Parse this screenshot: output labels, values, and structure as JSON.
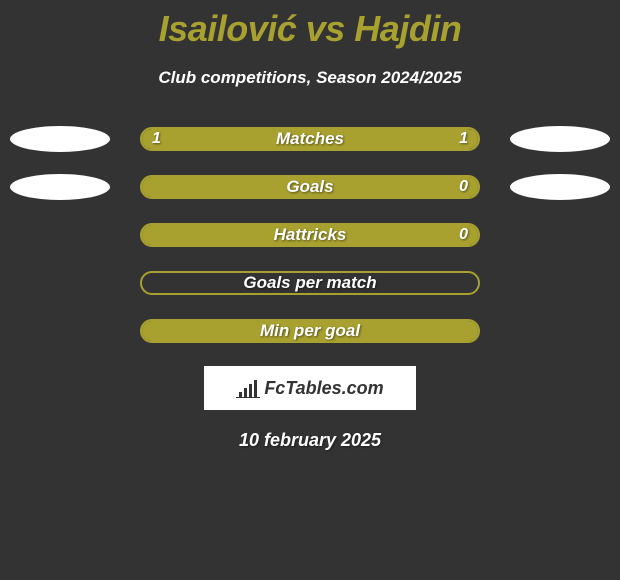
{
  "title": "Isailović vs Hajdin",
  "subtitle": "Club competitions, Season 2024/2025",
  "colors": {
    "background": "#333333",
    "accent": "#a8a130",
    "text": "#ffffff",
    "ellipse": "#ffffff",
    "outline": "#a8a130"
  },
  "stats": [
    {
      "label": "Matches",
      "left_value": "1",
      "right_value": "1",
      "left_fill_pct": 50,
      "right_fill_pct": 50,
      "show_left_ellipse": true,
      "show_right_ellipse": true
    },
    {
      "label": "Goals",
      "left_value": "",
      "right_value": "0",
      "left_fill_pct": 100,
      "right_fill_pct": 0,
      "show_left_ellipse": true,
      "show_right_ellipse": true
    },
    {
      "label": "Hattricks",
      "left_value": "",
      "right_value": "0",
      "left_fill_pct": 100,
      "right_fill_pct": 0,
      "show_left_ellipse": false,
      "show_right_ellipse": false
    },
    {
      "label": "Goals per match",
      "left_value": "",
      "right_value": "",
      "left_fill_pct": 0,
      "right_fill_pct": 0,
      "show_left_ellipse": false,
      "show_right_ellipse": false
    },
    {
      "label": "Min per goal",
      "left_value": "",
      "right_value": "",
      "left_fill_pct": 100,
      "right_fill_pct": 0,
      "show_left_ellipse": false,
      "show_right_ellipse": false
    }
  ],
  "logo_text": "FcTables.com",
  "date": "10 february 2025"
}
